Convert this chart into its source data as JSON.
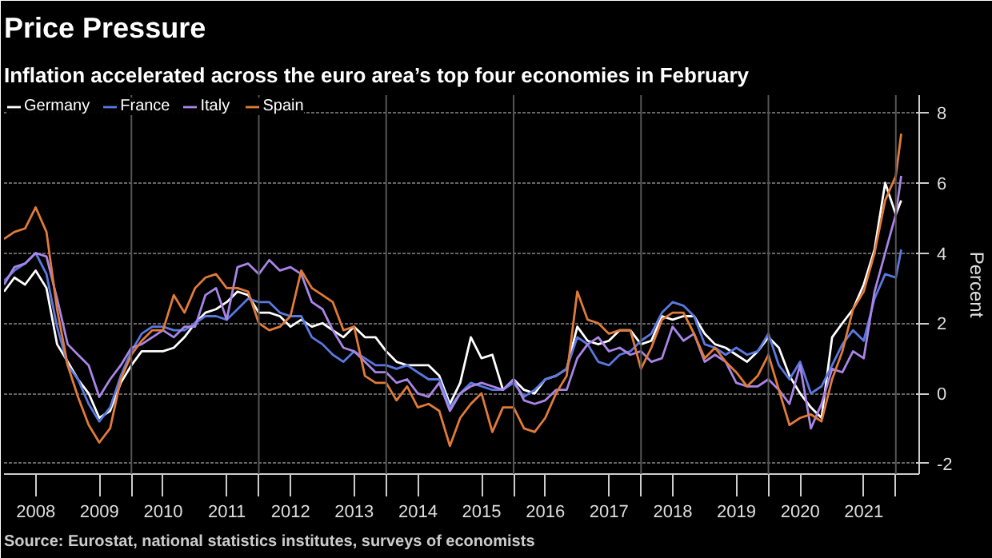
{
  "chart_data": {
    "type": "line",
    "title": "Price Pressure",
    "subtitle": "Inflation accelerated across the euro area’s top four economies in February",
    "ylabel": "Percent",
    "annotations": [
      "Source: Eurostat, national statistics institutes, surveys of economists"
    ],
    "x": [
      "2008-01",
      "2008-03",
      "2008-05",
      "2008-07",
      "2008-09",
      "2008-11",
      "2009-01",
      "2009-03",
      "2009-05",
      "2009-07",
      "2009-09",
      "2009-11",
      "2010-01",
      "2010-03",
      "2010-05",
      "2010-07",
      "2010-09",
      "2010-11",
      "2011-01",
      "2011-03",
      "2011-05",
      "2011-07",
      "2011-09",
      "2011-11",
      "2012-01",
      "2012-03",
      "2012-05",
      "2012-07",
      "2012-09",
      "2012-11",
      "2013-01",
      "2013-03",
      "2013-05",
      "2013-07",
      "2013-09",
      "2013-11",
      "2014-01",
      "2014-03",
      "2014-05",
      "2014-07",
      "2014-09",
      "2014-11",
      "2015-01",
      "2015-03",
      "2015-05",
      "2015-07",
      "2015-09",
      "2015-11",
      "2016-01",
      "2016-03",
      "2016-05",
      "2016-07",
      "2016-09",
      "2016-11",
      "2017-01",
      "2017-03",
      "2017-05",
      "2017-07",
      "2017-09",
      "2017-11",
      "2018-01",
      "2018-03",
      "2018-05",
      "2018-07",
      "2018-09",
      "2018-11",
      "2019-01",
      "2019-03",
      "2019-05",
      "2019-07",
      "2019-09",
      "2019-11",
      "2020-01",
      "2020-03",
      "2020-05",
      "2020-07",
      "2020-09",
      "2020-11",
      "2021-01",
      "2021-03",
      "2021-05",
      "2021-07",
      "2021-09",
      "2021-11",
      "2022-01",
      "2022-02"
    ],
    "series": [
      {
        "name": "Germany",
        "color": "#ffffff",
        "values": [
          2.9,
          3.3,
          3.1,
          3.5,
          3.0,
          1.4,
          0.9,
          0.4,
          0.0,
          -0.7,
          -0.5,
          0.3,
          0.8,
          1.2,
          1.2,
          1.2,
          1.3,
          1.6,
          2.0,
          2.3,
          2.4,
          2.6,
          2.9,
          2.8,
          2.3,
          2.3,
          2.2,
          1.9,
          2.1,
          1.9,
          2.0,
          1.8,
          1.6,
          1.9,
          1.6,
          1.6,
          1.2,
          0.9,
          0.8,
          0.8,
          0.8,
          0.5,
          -0.3,
          0.3,
          1.6,
          1.0,
          1.1,
          0.1,
          0.4,
          0.1,
          0.0,
          0.4,
          0.5,
          0.7,
          1.9,
          1.5,
          1.4,
          1.5,
          1.8,
          1.8,
          1.4,
          1.5,
          2.2,
          2.1,
          2.2,
          2.2,
          1.7,
          1.4,
          1.3,
          1.1,
          0.9,
          1.2,
          1.6,
          1.3,
          0.5,
          0.0,
          -0.4,
          -0.7,
          1.6,
          2.0,
          2.4,
          3.1,
          4.1,
          6.0,
          5.1,
          5.5
        ]
      },
      {
        "name": "France",
        "color": "#5a78e0",
        "values": [
          3.2,
          3.5,
          3.7,
          4.0,
          3.4,
          1.9,
          0.8,
          0.4,
          -0.3,
          -0.8,
          -0.4,
          0.5,
          1.2,
          1.7,
          1.9,
          1.9,
          1.8,
          1.8,
          2.0,
          2.2,
          2.2,
          2.1,
          2.4,
          2.7,
          2.6,
          2.6,
          2.3,
          2.2,
          2.2,
          1.6,
          1.4,
          1.1,
          0.9,
          1.2,
          1.0,
          0.8,
          0.8,
          0.7,
          0.8,
          0.6,
          0.4,
          0.4,
          -0.4,
          0.0,
          0.3,
          0.2,
          0.1,
          0.1,
          0.3,
          -0.1,
          0.1,
          0.4,
          0.5,
          0.7,
          1.6,
          1.4,
          0.9,
          0.8,
          1.1,
          1.2,
          1.5,
          1.7,
          2.3,
          2.6,
          2.5,
          2.2,
          1.4,
          1.3,
          1.1,
          1.3,
          1.1,
          1.2,
          1.7,
          0.8,
          0.4,
          0.9,
          0.0,
          0.2,
          0.8,
          1.4,
          1.8,
          1.5,
          2.7,
          3.4,
          3.3,
          4.1
        ]
      },
      {
        "name": "Italy",
        "color": "#a985e6",
        "values": [
          3.1,
          3.6,
          3.7,
          4.0,
          3.9,
          2.7,
          1.4,
          1.1,
          0.8,
          -0.1,
          0.4,
          0.8,
          1.3,
          1.4,
          1.6,
          1.8,
          1.6,
          1.9,
          1.9,
          2.8,
          3.0,
          2.1,
          3.6,
          3.7,
          3.4,
          3.8,
          3.5,
          3.6,
          3.4,
          2.6,
          2.4,
          1.8,
          1.3,
          1.2,
          0.9,
          0.6,
          0.6,
          0.3,
          0.4,
          0.0,
          -0.1,
          0.3,
          -0.5,
          0.0,
          0.2,
          0.3,
          0.2,
          0.1,
          0.4,
          -0.2,
          -0.3,
          -0.2,
          0.1,
          0.1,
          1.0,
          1.4,
          1.6,
          1.2,
          1.3,
          1.1,
          1.2,
          0.9,
          1.0,
          1.9,
          1.5,
          1.7,
          0.9,
          1.1,
          0.9,
          0.3,
          0.2,
          0.2,
          0.4,
          0.1,
          -0.3,
          0.8,
          -1.0,
          -0.3,
          0.7,
          0.6,
          1.2,
          1.0,
          2.9,
          4.0,
          5.1,
          6.2
        ]
      },
      {
        "name": "Spain",
        "color": "#e07b39",
        "values": [
          4.4,
          4.6,
          4.7,
          5.3,
          4.6,
          2.4,
          0.8,
          -0.1,
          -0.9,
          -1.4,
          -1.0,
          0.4,
          1.1,
          1.5,
          1.8,
          1.8,
          2.8,
          2.3,
          3.0,
          3.3,
          3.4,
          3.0,
          3.0,
          2.9,
          2.0,
          1.8,
          1.9,
          2.2,
          3.5,
          3.0,
          2.8,
          2.6,
          1.8,
          1.9,
          0.5,
          0.3,
          0.3,
          -0.2,
          0.2,
          -0.4,
          -0.3,
          -0.5,
          -1.5,
          -0.7,
          -0.3,
          0.0,
          -1.1,
          -0.4,
          -0.4,
          -1.0,
          -1.1,
          -0.7,
          0.0,
          0.5,
          2.9,
          2.1,
          2.0,
          1.7,
          1.8,
          1.8,
          0.7,
          1.3,
          2.1,
          2.3,
          2.3,
          1.7,
          1.0,
          1.3,
          0.9,
          0.6,
          0.2,
          0.5,
          1.1,
          0.1,
          -0.9,
          -0.7,
          -0.6,
          -0.8,
          0.4,
          1.2,
          2.4,
          2.9,
          4.0,
          5.5,
          6.2,
          7.4
        ]
      }
    ],
    "xlim": [
      "2008-01-01",
      "2022-05-15"
    ],
    "xticks": [
      {
        "value": "2008-07-02",
        "label": "2008"
      },
      {
        "value": "2009-07-02",
        "label": "2009"
      },
      {
        "value": "2010-07-02",
        "label": "2010"
      },
      {
        "value": "2011-07-02",
        "label": "2011"
      },
      {
        "value": "2012-07-02",
        "label": "2012"
      },
      {
        "value": "2013-07-02",
        "label": "2013"
      },
      {
        "value": "2014-07-02",
        "label": "2014"
      },
      {
        "value": "2015-07-02",
        "label": "2015"
      },
      {
        "value": "2016-07-02",
        "label": "2016"
      },
      {
        "value": "2017-07-02",
        "label": "2017"
      },
      {
        "value": "2018-07-02",
        "label": "2018"
      },
      {
        "value": "2019-07-02",
        "label": "2019"
      },
      {
        "value": "2020-07-02",
        "label": "2020"
      },
      {
        "value": "2021-07-02",
        "label": "2021"
      },
      {
        "value": "2010-01-01",
        "label": null
      },
      {
        "value": "2012-01-01",
        "label": null
      },
      {
        "value": "2014-01-01",
        "label": null
      },
      {
        "value": "2016-01-01",
        "label": null
      },
      {
        "value": "2018-01-01",
        "label": null
      },
      {
        "value": "2020-01-01",
        "label": null
      },
      {
        "value": "2022-01-01",
        "label": null
      }
    ],
    "ylim": [
      -2.3,
      8.5
    ],
    "yticks": [
      -2,
      0,
      2,
      4,
      6,
      8
    ],
    "grid": true,
    "legend": "top left",
    "line_style": "solid"
  }
}
